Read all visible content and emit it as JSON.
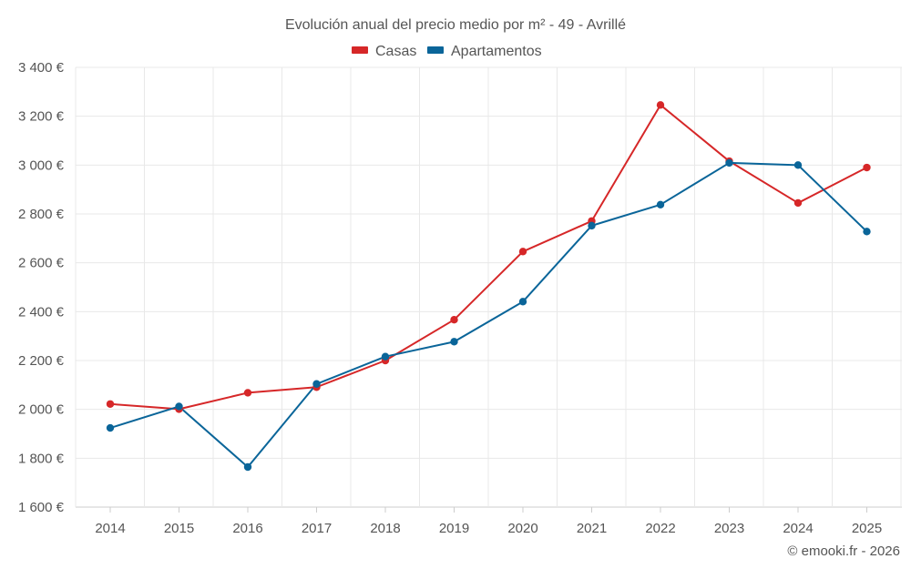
{
  "chart_data": {
    "type": "line",
    "title": "Evolución anual del precio medio por m² - 49 - Avrillé",
    "categories": [
      "2014",
      "2015",
      "2016",
      "2017",
      "2018",
      "2019",
      "2020",
      "2021",
      "2022",
      "2023",
      "2024",
      "2025"
    ],
    "series": [
      {
        "name": "Casas",
        "color": "#d62728",
        "values": [
          2022,
          2001,
          2068,
          2091,
          2200,
          2367,
          2646,
          2771,
          3246,
          3016,
          2845,
          2990
        ]
      },
      {
        "name": "Apartamentos",
        "color": "#0a6599",
        "values": [
          1924,
          2012,
          1764,
          2104,
          2216,
          2277,
          2441,
          2752,
          2838,
          3009,
          3000,
          2728
        ]
      }
    ],
    "ylim": [
      1600,
      3400
    ],
    "yticks": [
      1600,
      1800,
      2000,
      2200,
      2400,
      2600,
      2800,
      3000,
      3200,
      3400
    ],
    "ytick_labels": [
      "1 600 €",
      "1 800 €",
      "2 000 €",
      "2 200 €",
      "2 400 €",
      "2 600 €",
      "2 800 €",
      "3 000 €",
      "3 200 €",
      "3 400 €"
    ],
    "xlabel": "",
    "ylabel": "",
    "grid": true,
    "legend_position": "top-center"
  },
  "credit": "© emooki.fr - 2026"
}
